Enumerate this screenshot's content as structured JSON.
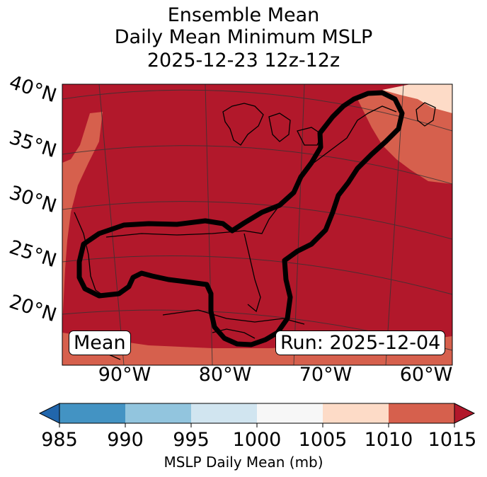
{
  "title": {
    "line1": "Ensemble Mean",
    "line2": "Daily Mean Minimum MSLP",
    "line3": "2025-12-23 12z-12z"
  },
  "latitude_labels": [
    "40°N",
    "35°N",
    "30°N",
    "25°N",
    "20°N"
  ],
  "longitude_labels": [
    "90°W",
    "80°W",
    "70°W",
    "60°W"
  ],
  "map_labels": {
    "mean": "Mean",
    "run": "Run: 2025-12-04"
  },
  "colorbar": {
    "ticks": [
      "985",
      "990",
      "995",
      "1000",
      "1005",
      "1010",
      "1015"
    ],
    "label": "MSLP Daily Mean (mb)",
    "colors": [
      "#2166ac",
      "#4393c3",
      "#92c5de",
      "#d1e5f0",
      "#f7f7f7",
      "#fddbc7",
      "#d6604d",
      "#b2182b"
    ]
  },
  "colors": {
    "dominant_field": "#b2182b",
    "edge_field": "#d6604d",
    "light_field": "#fddbc7",
    "contour": "#000000"
  }
}
